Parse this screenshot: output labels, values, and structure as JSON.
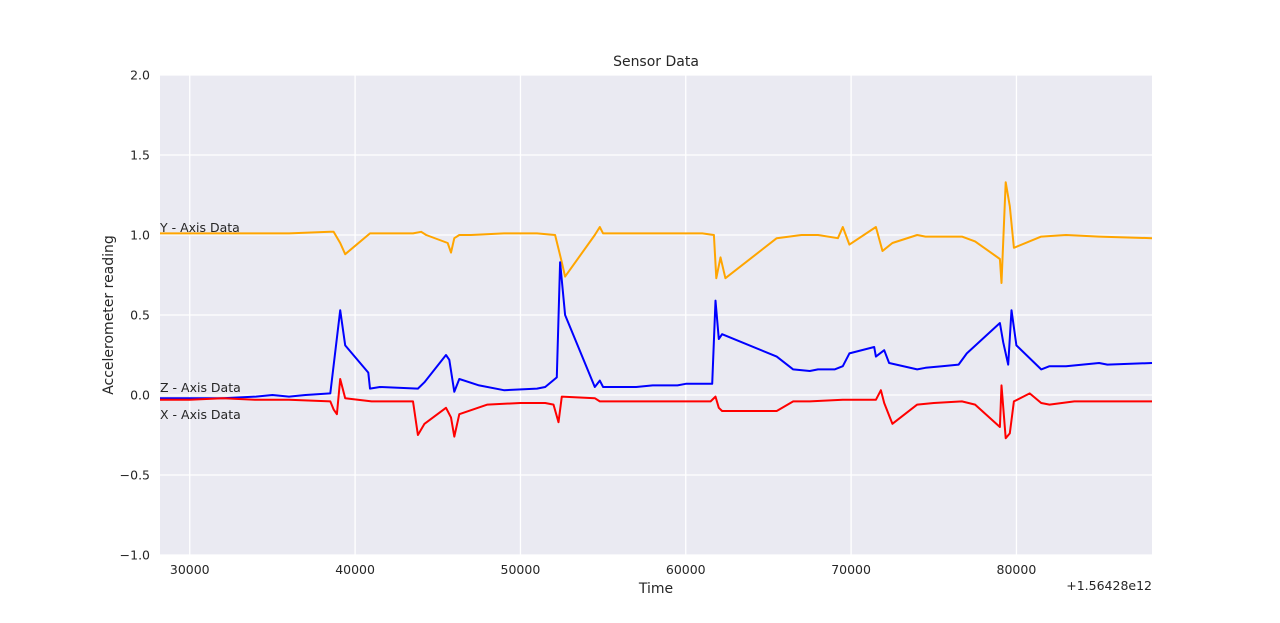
{
  "chart_data": {
    "type": "line",
    "title": "Sensor Data",
    "xlabel": "Time",
    "ylabel": "Accelerometer reading",
    "x_offset_label": "+1.56428e12",
    "xlim": [
      28200,
      88200
    ],
    "ylim": [
      -1.0,
      2.0
    ],
    "grid": true,
    "background": "#eaeaf2",
    "xticks": [
      30000,
      40000,
      50000,
      60000,
      70000,
      80000
    ],
    "xtick_labels": [
      "30000",
      "40000",
      "50000",
      "60000",
      "70000",
      "80000"
    ],
    "yticks": [
      2.0,
      1.5,
      1.0,
      0.5,
      0.0,
      -0.5,
      -1.0
    ],
    "ytick_labels": [
      "2.0",
      "1.5",
      "1.0",
      "0.5",
      "0.0",
      "−0.5",
      "−1.0"
    ],
    "series": [
      {
        "name": "Y - Axis Data",
        "color": "#ffa500",
        "label_at": [
          28200,
          1.02
        ],
        "x": [
          28200,
          30000,
          32000,
          34000,
          36000,
          38500,
          38700,
          39100,
          39400,
          40900,
          42000,
          43500,
          44000,
          44300,
          45600,
          45800,
          46000,
          46300,
          47000,
          49000,
          51000,
          52100,
          52500,
          52700,
          54500,
          54800,
          55000,
          57000,
          59000,
          61000,
          61700,
          61850,
          62100,
          62400,
          65500,
          67000,
          68000,
          69200,
          69500,
          69900,
          71500,
          71900,
          72500,
          74000,
          74500,
          76700,
          77500,
          79000,
          79100,
          79350,
          79600,
          79850,
          81500,
          83000,
          85000,
          88200
        ],
        "y": [
          1.01,
          1.01,
          1.01,
          1.01,
          1.01,
          1.02,
          1.02,
          0.95,
          0.88,
          1.01,
          1.01,
          1.01,
          1.02,
          1.0,
          0.95,
          0.89,
          0.98,
          1.0,
          1.0,
          1.01,
          1.01,
          1.0,
          0.83,
          0.74,
          1.0,
          1.05,
          1.01,
          1.01,
          1.01,
          1.01,
          1.0,
          0.73,
          0.86,
          0.73,
          0.98,
          1.0,
          1.0,
          0.98,
          1.05,
          0.94,
          1.05,
          0.9,
          0.95,
          1.0,
          0.99,
          0.99,
          0.96,
          0.85,
          0.7,
          1.33,
          1.18,
          0.92,
          0.99,
          1.0,
          0.99,
          0.98
        ]
      },
      {
        "name": "Z - Axis Data",
        "color": "#0000ff",
        "label_at": [
          28200,
          0.02
        ],
        "x": [
          28200,
          30000,
          32000,
          34000,
          35000,
          36000,
          37000,
          38500,
          39100,
          39400,
          40800,
          40900,
          41500,
          43800,
          44200,
          45500,
          45700,
          46000,
          46300,
          47500,
          49000,
          51000,
          51500,
          52200,
          52400,
          52700,
          54500,
          54800,
          55000,
          57000,
          58000,
          59500,
          60000,
          61600,
          61800,
          62000,
          62200,
          65500,
          66500,
          67500,
          68000,
          69000,
          69500,
          69900,
          71400,
          71500,
          72000,
          72300,
          74000,
          74500,
          75500,
          76500,
          77000,
          79000,
          79200,
          79500,
          79700,
          80000,
          81500,
          82000,
          83000,
          85000,
          85500,
          88200
        ],
        "y": [
          -0.02,
          -0.02,
          -0.02,
          -0.01,
          0.0,
          -0.01,
          0.0,
          0.01,
          0.53,
          0.31,
          0.14,
          0.04,
          0.05,
          0.04,
          0.08,
          0.25,
          0.22,
          0.02,
          0.1,
          0.06,
          0.03,
          0.04,
          0.05,
          0.11,
          0.83,
          0.5,
          0.05,
          0.09,
          0.05,
          0.05,
          0.06,
          0.06,
          0.07,
          0.07,
          0.59,
          0.35,
          0.38,
          0.24,
          0.16,
          0.15,
          0.16,
          0.16,
          0.18,
          0.26,
          0.3,
          0.24,
          0.28,
          0.2,
          0.16,
          0.17,
          0.18,
          0.19,
          0.26,
          0.45,
          0.33,
          0.19,
          0.53,
          0.31,
          0.16,
          0.18,
          0.18,
          0.2,
          0.19,
          0.2
        ]
      },
      {
        "name": "X - Axis Data",
        "color": "#ff0000",
        "label_at": [
          28200,
          -0.15
        ],
        "x": [
          28200,
          30000,
          32000,
          34000,
          36000,
          38500,
          38700,
          38900,
          39100,
          39400,
          41000,
          42000,
          43500,
          43800,
          44200,
          45500,
          45800,
          46000,
          46300,
          48000,
          50000,
          51500,
          52000,
          52300,
          52500,
          54500,
          54800,
          55000,
          57000,
          59000,
          61500,
          61800,
          62000,
          62200,
          65500,
          66500,
          67500,
          69500,
          71000,
          71500,
          71800,
          72000,
          72500,
          74000,
          75000,
          76700,
          77500,
          79000,
          79100,
          79350,
          79600,
          79850,
          80800,
          81500,
          82000,
          83500,
          85000,
          88200
        ],
        "y": [
          -0.03,
          -0.03,
          -0.02,
          -0.03,
          -0.03,
          -0.04,
          -0.09,
          -0.12,
          0.1,
          -0.02,
          -0.04,
          -0.04,
          -0.04,
          -0.25,
          -0.18,
          -0.08,
          -0.14,
          -0.26,
          -0.12,
          -0.06,
          -0.05,
          -0.05,
          -0.06,
          -0.17,
          -0.01,
          -0.02,
          -0.04,
          -0.04,
          -0.04,
          -0.04,
          -0.04,
          -0.01,
          -0.08,
          -0.1,
          -0.1,
          -0.04,
          -0.04,
          -0.03,
          -0.03,
          -0.03,
          0.03,
          -0.05,
          -0.18,
          -0.06,
          -0.05,
          -0.04,
          -0.06,
          -0.2,
          0.06,
          -0.27,
          -0.24,
          -0.04,
          0.01,
          -0.05,
          -0.06,
          -0.04,
          -0.04,
          -0.04
        ]
      }
    ]
  }
}
